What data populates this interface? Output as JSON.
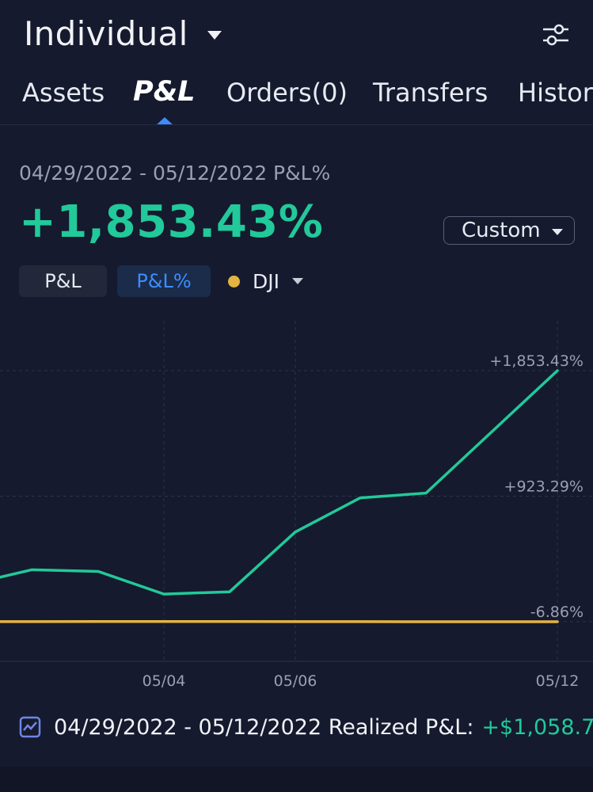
{
  "header": {
    "account_name": "Individual"
  },
  "tabs": [
    {
      "label": "Assets",
      "active": false
    },
    {
      "label": "P&L",
      "active": true
    },
    {
      "label": "Orders(0)",
      "active": false
    },
    {
      "label": "Transfers",
      "active": false
    },
    {
      "label": "History",
      "active": false
    }
  ],
  "summary": {
    "period_label": "04/29/2022 - 05/12/2022 P&L%",
    "value": "+1,853.43%",
    "range_select": "Custom"
  },
  "toggles": {
    "pl": "P&L",
    "pl_pct": "P&L%",
    "benchmark": "DJI"
  },
  "colors": {
    "background": "#151a2e",
    "accent": "#3d8cff",
    "positive": "#22c99a",
    "benchmark": "#e5b340"
  },
  "chart_data": {
    "type": "line",
    "ylim": [
      -6.86,
      1853.43
    ],
    "y_tick_labels": [
      "+1,853.43%",
      "+923.29%",
      "-6.86%"
    ],
    "x_tick_labels": [
      "05/04",
      "05/06",
      "05/12"
    ],
    "x": [
      "04/29",
      "05/02",
      "05/03",
      "05/04",
      "05/05",
      "05/06",
      "05/07",
      "05/09",
      "05/12"
    ],
    "series": [
      {
        "name": "",
        "color": "#22c99a",
        "values": [
          316,
          378,
          366,
          198,
          215,
          658,
          911,
          946,
          1853.43
        ]
      },
      {
        "name": "DJI",
        "color": "#e5b340",
        "values": [
          -6.2,
          -6.0,
          -5.8,
          -5.5,
          -5.9,
          -6.2,
          -6.4,
          -6.6,
          -6.86
        ]
      }
    ],
    "grid": true
  },
  "realized": {
    "label": "04/29/2022 - 05/12/2022 Realized P&L:",
    "value": "+$1,058.7",
    "icon": "chart-icon"
  }
}
